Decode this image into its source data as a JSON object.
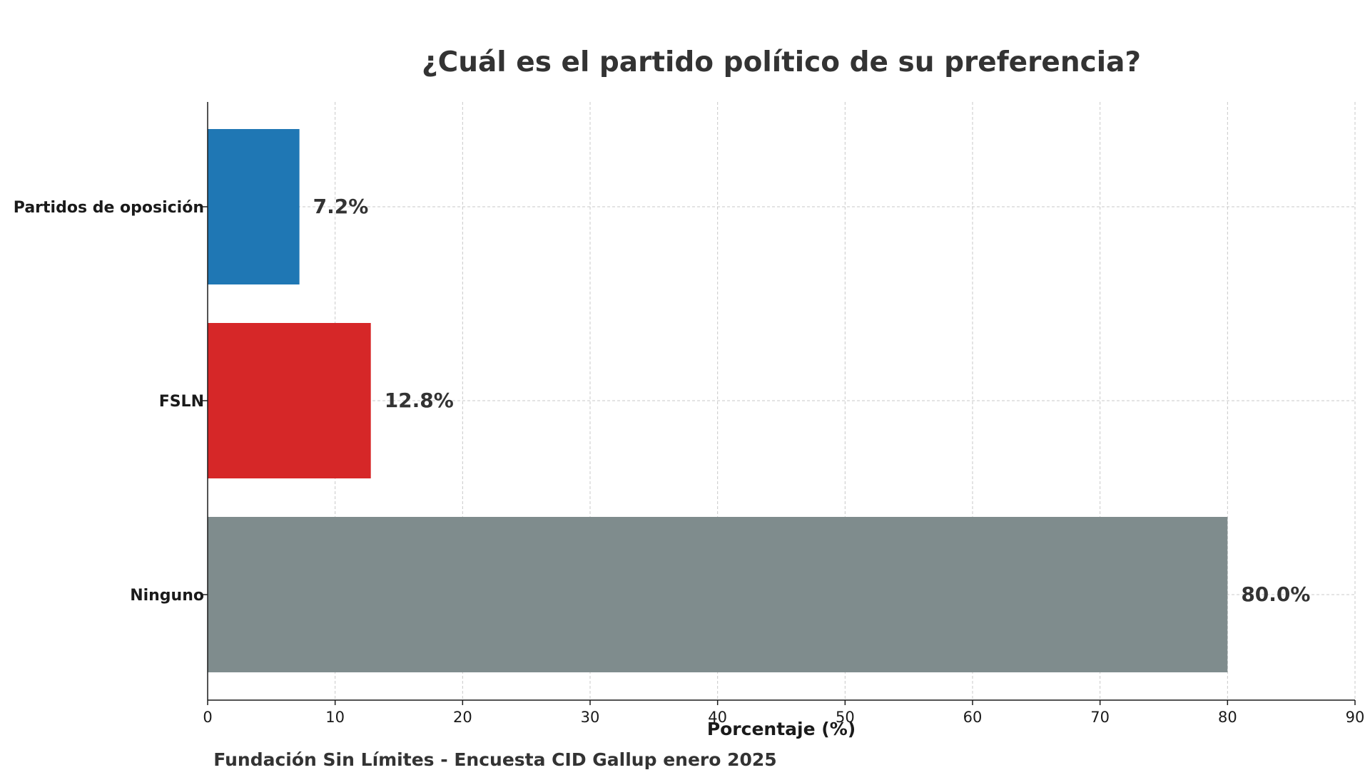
{
  "chart_data": {
    "type": "bar",
    "orientation": "horizontal",
    "title": "¿Cuál es el partido político de su preferencia?",
    "xlabel": "Porcentaje (%)",
    "ylabel": "",
    "source": "Fundación Sin Límites - Encuesta CID Gallup enero 2025",
    "categories": [
      "Partidos de oposición",
      "FSLN",
      "Ninguno"
    ],
    "values": [
      7.2,
      12.8,
      80.0
    ],
    "value_labels": [
      "7.2%",
      "12.8%",
      "80.0%"
    ],
    "colors": [
      "#1f77b4",
      "#d62728",
      "#7f8c8d"
    ],
    "xlim": [
      0,
      90
    ],
    "x_ticks": [
      0,
      10,
      20,
      30,
      40,
      50,
      60,
      70,
      80,
      90
    ],
    "grid": true
  }
}
